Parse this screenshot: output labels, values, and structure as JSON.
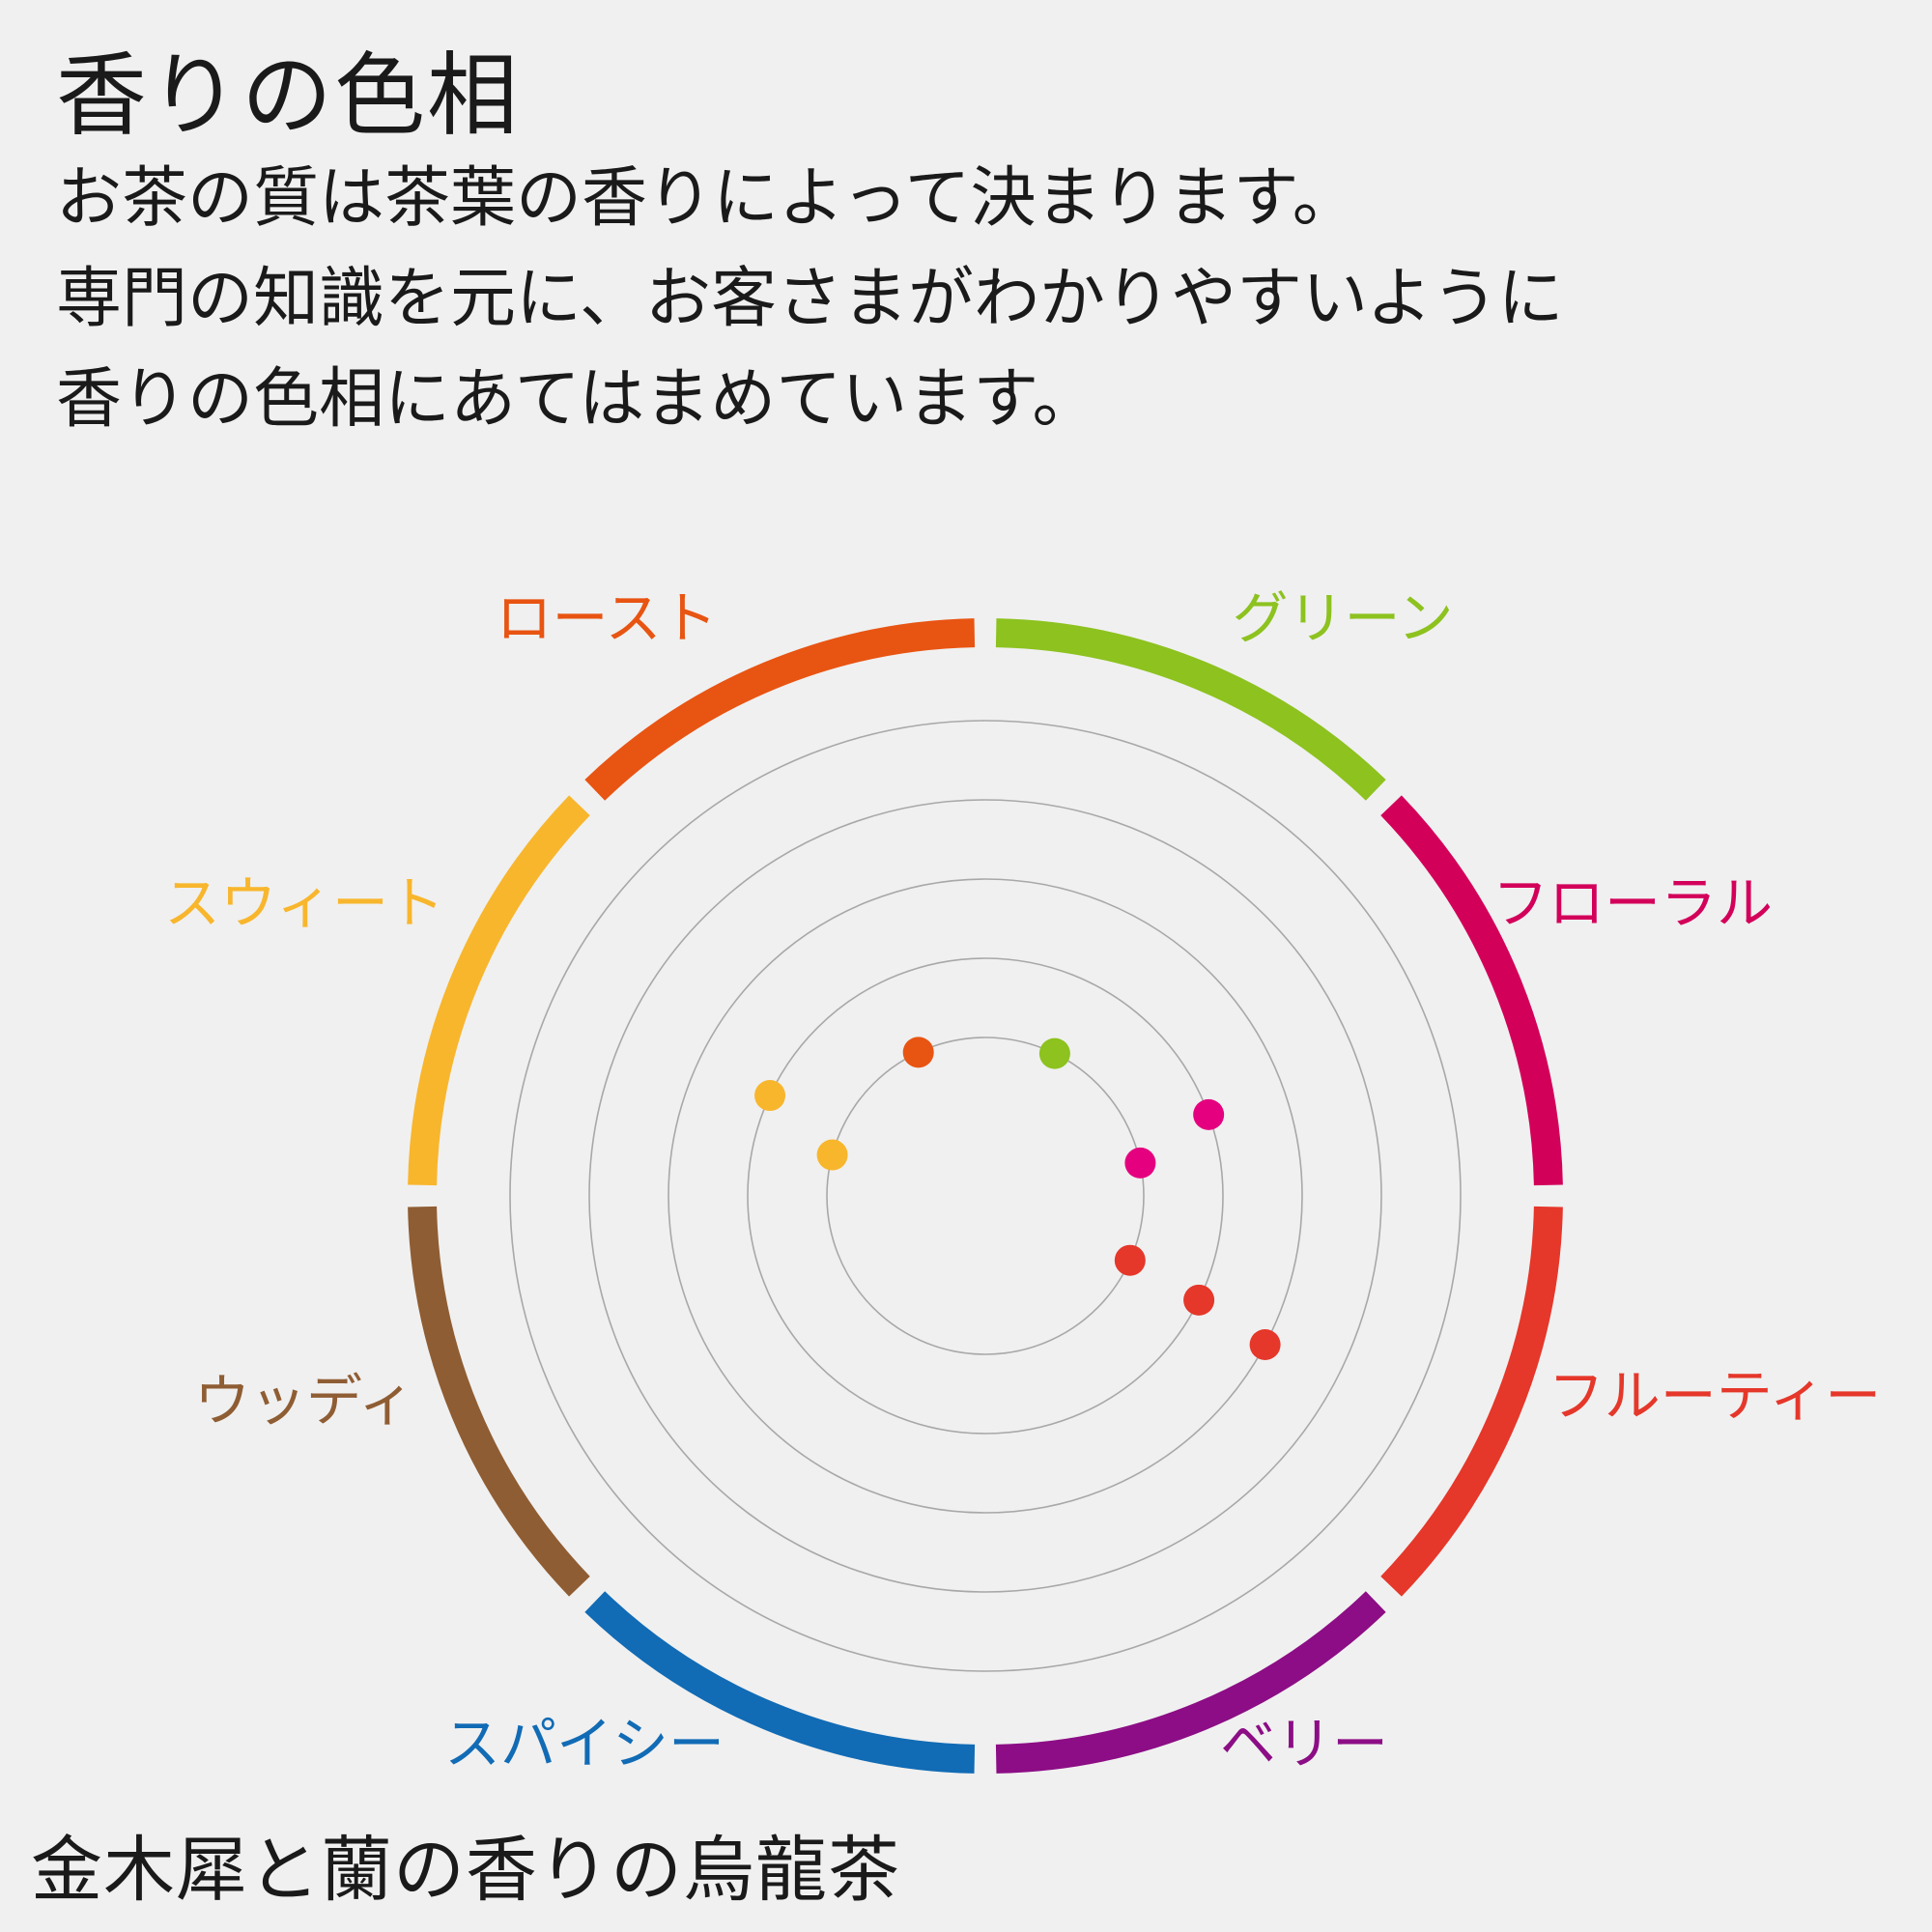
{
  "title": "香りの色相",
  "description": [
    "お茶の質は茶葉の香りによって決まります。",
    "専門の知識を元に、お客さまがわかりやすいように",
    "香りの色相にあてはまめています。"
  ],
  "caption": "金木犀と蘭の香りの烏龍茶",
  "chart_data": {
    "type": "radar",
    "rings": 5,
    "grid": true,
    "categories": [
      {
        "label": "グリーン",
        "color": "#8dc21f"
      },
      {
        "label": "フローラル",
        "color": "#d3005a"
      },
      {
        "label": "フルーティー",
        "color": "#e5372a"
      },
      {
        "label": "ベリー",
        "color": "#8c0d85"
      },
      {
        "label": "スパイシー",
        "color": "#116bb5"
      },
      {
        "label": "ウッディ",
        "color": "#8f5d33"
      },
      {
        "label": "スウィート",
        "color": "#f8b62d"
      },
      {
        "label": "ロースト",
        "color": "#e85412"
      }
    ],
    "points": [
      {
        "category": "ロースト",
        "angle_deg": -25,
        "level": 1,
        "color": "#e85412"
      },
      {
        "category": "グリーン",
        "angle_deg": 26,
        "level": 1,
        "color": "#8dc21f"
      },
      {
        "category": "フローラル",
        "angle_deg": 70,
        "level": 2,
        "color": "#e5007f"
      },
      {
        "category": "フローラル",
        "angle_deg": 78,
        "level": 1,
        "color": "#e5007f"
      },
      {
        "category": "フルーティー",
        "angle_deg": 114,
        "level": 1,
        "color": "#e5372a"
      },
      {
        "category": "フルーティー",
        "angle_deg": 116,
        "level": 2,
        "color": "#e5372a"
      },
      {
        "category": "フルーティー",
        "angle_deg": 118,
        "level": 3,
        "color": "#e5372a"
      },
      {
        "category": "スウィート",
        "angle_deg": -75,
        "level": 1,
        "color": "#f8b62d"
      },
      {
        "category": "スウィート",
        "angle_deg": -65,
        "level": 2,
        "color": "#f8b62d"
      }
    ]
  }
}
